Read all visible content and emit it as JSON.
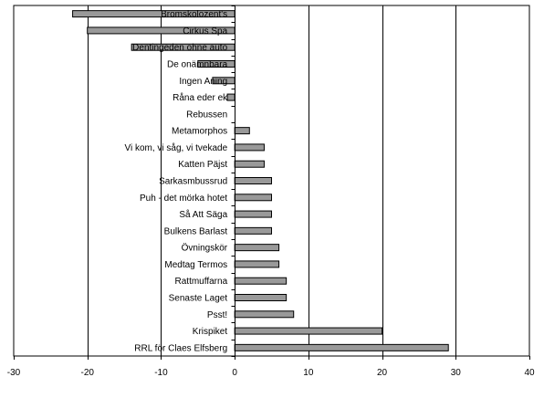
{
  "chart_data": {
    "type": "bar",
    "orientation": "horizontal",
    "title": "",
    "xlabel": "",
    "ylabel": "",
    "xlim": [
      -30,
      40
    ],
    "xticks": [
      -30,
      -20,
      -10,
      0,
      10,
      20,
      30,
      40
    ],
    "grid": "vertical major gridlines",
    "legend": "none",
    "bar_color": "#999999",
    "bar_edge_color": "#000000",
    "categories": [
      "Bromskolozent's",
      "Cirkus Spa",
      "Dentingeden ohne auto",
      "De onämnbara",
      "Ingen Aning",
      "Råna eder ek",
      "Rebussen",
      "Metamorphos",
      "Vi kom, vi såg, vi tvekade",
      "Katten Päjst",
      "Sarkasmbussrud",
      "Puh - det mörka hotet",
      "Så Att Säga",
      "Bulkens Barlast",
      "Övningskör",
      "Medtag Termos",
      "Rattmuffarna",
      "Senaste Laget",
      "Psst!",
      "Krispiket",
      "RRL för Claes Elfsberg"
    ],
    "values": [
      -22,
      -20,
      -14,
      -5,
      -3,
      -1,
      0,
      2,
      4,
      4,
      5,
      5,
      5,
      5,
      6,
      6,
      7,
      7,
      8,
      20,
      29
    ]
  }
}
